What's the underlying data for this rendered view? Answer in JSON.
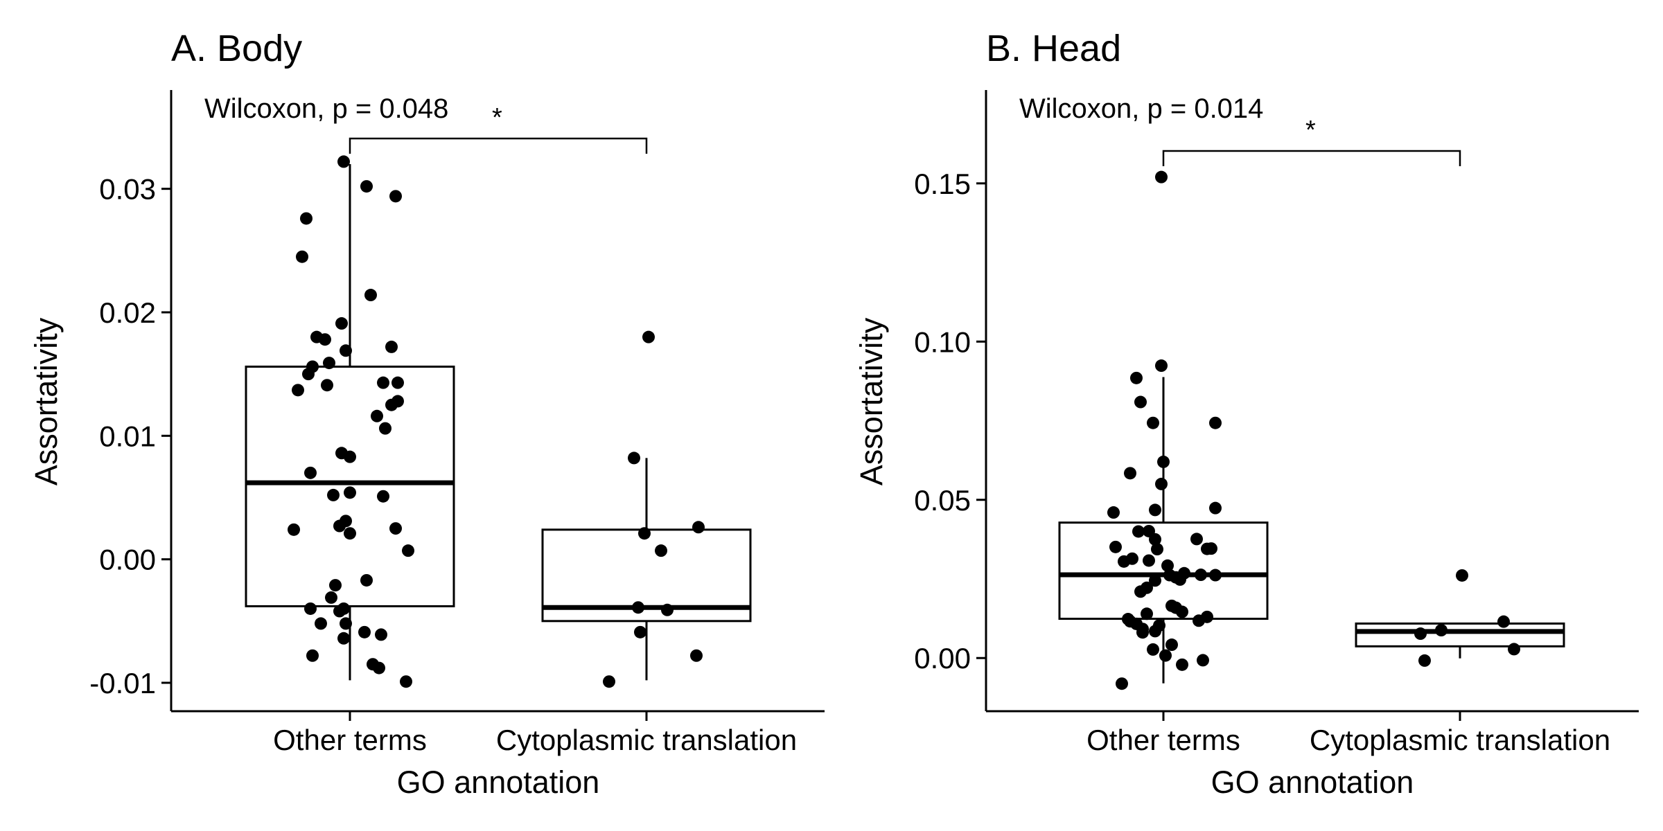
{
  "chart_data": [
    {
      "type": "box",
      "title": "A. Body",
      "xlabel": "GO annotation",
      "ylabel": "Assortativity",
      "categories": [
        "Other terms",
        "Cytoplasmic translation"
      ],
      "yticks": [
        "-0.01",
        "0.00",
        "0.01",
        "0.02",
        "0.03"
      ],
      "ytick_values": [
        -0.01,
        0.0,
        0.01,
        0.02,
        0.03
      ],
      "ylim": [
        -0.0123,
        0.038
      ],
      "grid": false,
      "test_label": "Wilcoxon, p = 0.048",
      "significance": "*",
      "boxes": [
        {
          "category": "Other terms",
          "q1": -0.0038,
          "median": 0.0062,
          "q3": 0.0156,
          "whisker_low": -0.0098,
          "whisker_high": 0.032
        },
        {
          "category": "Cytoplasmic translation",
          "q1": -0.005,
          "median": -0.0039,
          "q3": 0.0024,
          "whisker_low": -0.0098,
          "whisker_high": 0.0082
        }
      ],
      "points": [
        {
          "category": "Other terms",
          "values": [
            0.0322,
            0.0302,
            0.0294,
            0.0276,
            0.0245,
            0.0214,
            0.0191,
            0.018,
            0.0178,
            0.0172,
            0.0169,
            0.0159,
            0.0156,
            0.015,
            0.0143,
            0.0143,
            0.0141,
            0.0137,
            0.0128,
            0.0125,
            0.0116,
            0.0106,
            0.0086,
            0.0083,
            0.007,
            0.0054,
            0.0052,
            0.0051,
            0.0031,
            0.0027,
            0.0025,
            0.0024,
            0.0021,
            0.0007,
            -0.0017,
            -0.0021,
            -0.0031,
            -0.004,
            -0.004,
            -0.0042,
            -0.0052,
            -0.0052,
            -0.0059,
            -0.0061,
            -0.0064,
            -0.0078,
            -0.0085,
            -0.0088,
            -0.0099
          ],
          "jitter": [
            -0.03,
            0.08,
            0.22,
            -0.21,
            -0.23,
            0.1,
            -0.04,
            -0.16,
            -0.12,
            0.2,
            -0.02,
            -0.1,
            -0.18,
            -0.2,
            0.16,
            0.23,
            -0.11,
            -0.25,
            0.23,
            0.2,
            0.13,
            0.17,
            -0.04,
            0.0,
            -0.19,
            0.0,
            -0.08,
            0.16,
            -0.02,
            -0.05,
            0.22,
            -0.27,
            0.0,
            0.28,
            0.08,
            -0.07,
            -0.09,
            -0.19,
            -0.03,
            -0.05,
            -0.14,
            -0.02,
            0.07,
            0.15,
            -0.03,
            -0.18,
            0.11,
            0.14,
            0.27
          ]
        },
        {
          "category": "Cytoplasmic translation",
          "values": [
            0.018,
            0.0082,
            0.0026,
            0.0021,
            0.0007,
            -0.0039,
            -0.0041,
            -0.0059,
            -0.0078,
            -0.0099
          ],
          "jitter": [
            0.01,
            -0.06,
            0.25,
            -0.01,
            0.07,
            -0.04,
            0.1,
            -0.03,
            0.24,
            -0.18
          ]
        }
      ]
    },
    {
      "type": "box",
      "title": "B. Head",
      "xlabel": "GO annotation",
      "ylabel": "Assortativity",
      "categories": [
        "Other terms",
        "Cytoplasmic translation"
      ],
      "yticks": [
        "0.00",
        "0.05",
        "0.10",
        "0.15"
      ],
      "ytick_values": [
        0.0,
        0.05,
        0.1,
        0.15
      ],
      "ylim": [
        -0.0168,
        0.1795
      ],
      "grid": false,
      "test_label": "Wilcoxon, p = 0.014",
      "significance": "*",
      "boxes": [
        {
          "category": "Other terms",
          "q1": 0.0124,
          "median": 0.0263,
          "q3": 0.0428,
          "whisker_low": -0.008,
          "whisker_high": 0.0888
        },
        {
          "category": "Cytoplasmic translation",
          "q1": 0.0037,
          "median": 0.0084,
          "q3": 0.0109,
          "whisker_low": -0.0001,
          "whisker_high": 0.0111
        }
      ],
      "points": [
        {
          "category": "Other terms",
          "values": [
            0.152,
            0.0924,
            0.0885,
            0.0809,
            0.0743,
            0.0743,
            0.062,
            0.0584,
            0.055,
            0.0474,
            0.0468,
            0.046,
            0.0401,
            0.04,
            0.0376,
            0.0375,
            0.0351,
            0.0346,
            0.0345,
            0.0344,
            0.0314,
            0.0308,
            0.0305,
            0.0292,
            0.0268,
            0.0263,
            0.0262,
            0.0262,
            0.0255,
            0.0248,
            0.0245,
            0.0222,
            0.021,
            0.0165,
            0.0159,
            0.0146,
            0.014,
            0.013,
            0.0123,
            0.0118,
            0.0116,
            0.0108,
            0.0103,
            0.0092,
            0.0085,
            0.0081,
            0.0042,
            0.0027,
            0.0008,
            -0.0007,
            -0.0021,
            -0.0081
          ],
          "jitter": [
            -0.01,
            -0.01,
            -0.13,
            -0.11,
            -0.05,
            0.25,
            0.0,
            -0.16,
            -0.01,
            0.25,
            -0.04,
            -0.24,
            -0.07,
            -0.12,
            0.16,
            -0.04,
            -0.23,
            0.23,
            0.21,
            -0.03,
            -0.15,
            -0.07,
            -0.19,
            0.02,
            0.1,
            0.18,
            0.25,
            0.03,
            0.06,
            0.08,
            -0.04,
            -0.08,
            -0.11,
            0.04,
            0.06,
            0.09,
            -0.08,
            0.21,
            -0.17,
            0.17,
            -0.16,
            -0.13,
            -0.02,
            -0.1,
            -0.04,
            -0.1,
            0.04,
            -0.05,
            0.01,
            0.19,
            0.09,
            -0.2
          ]
        },
        {
          "category": "Cytoplasmic translation",
          "values": [
            0.0261,
            0.0115,
            0.0088,
            0.0077,
            0.0028,
            -0.0008
          ],
          "jitter": [
            0.01,
            0.21,
            -0.09,
            -0.19,
            0.26,
            -0.17
          ]
        }
      ]
    }
  ]
}
